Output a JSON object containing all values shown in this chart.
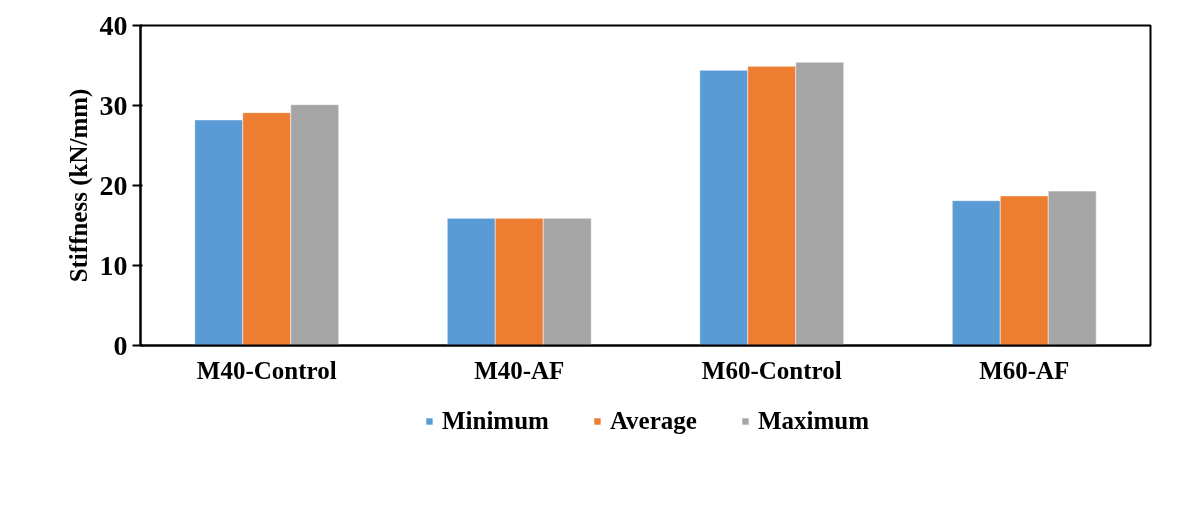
{
  "chart_data": {
    "type": "bar",
    "ylabel": "Stiffness (kN/mm)",
    "categories": [
      "M40-Control",
      "M40-AF",
      "M60-Control",
      "M60-AF"
    ],
    "series": [
      {
        "name": "Minimum",
        "color": "#5b9bd5",
        "values": [
          28.2,
          15.9,
          34.4,
          18.1
        ]
      },
      {
        "name": "Average",
        "color": "#ed7d31",
        "values": [
          29.1,
          15.9,
          34.9,
          18.7
        ]
      },
      {
        "name": "Maximum",
        "color": "#a5a5a5",
        "values": [
          30.1,
          15.9,
          35.4,
          19.3
        ]
      }
    ],
    "ylim": [
      0,
      40
    ],
    "yticks": [
      0,
      10,
      20,
      30,
      40
    ],
    "grid": false,
    "legend": "bottom"
  }
}
